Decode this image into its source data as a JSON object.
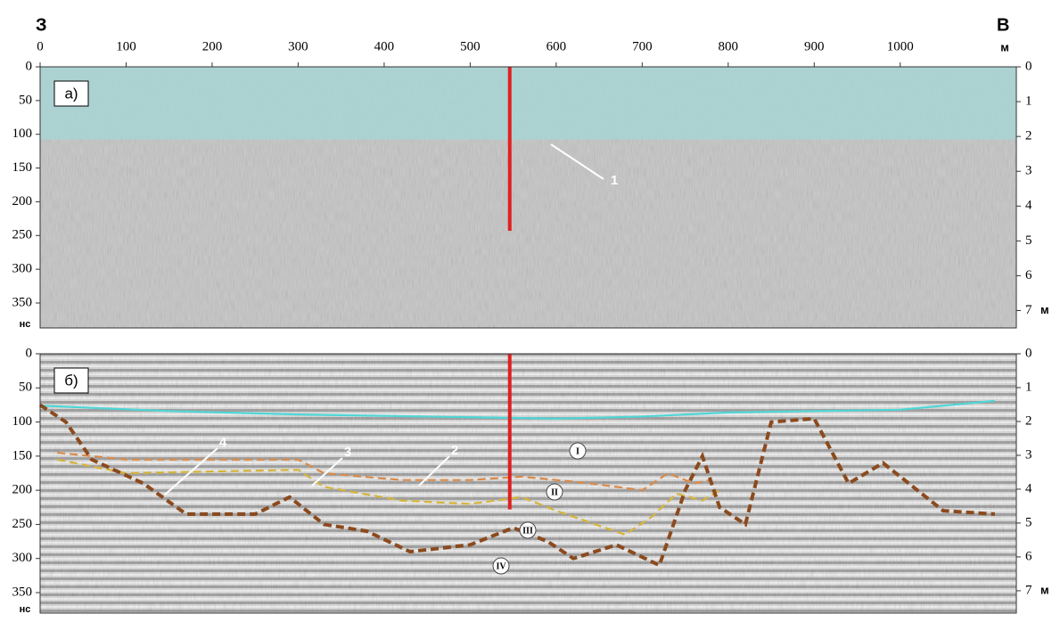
{
  "chart_data": [
    {
      "type": "radargram",
      "panel_label": "а)",
      "x_left_label": "З",
      "x_right_label": "В",
      "x_unit": "м",
      "xlim": [
        0,
        1135
      ],
      "xticks": [
        0,
        100,
        200,
        300,
        400,
        500,
        600,
        700,
        800,
        900,
        1000
      ],
      "ylim": [
        0,
        387
      ],
      "yticks": [
        0,
        50,
        100,
        150,
        200,
        250,
        300,
        350
      ],
      "y_unit": "нс",
      "y2lim": [
        0,
        7.5
      ],
      "y2ticks": [
        0,
        1,
        2,
        3,
        4,
        5,
        6,
        7
      ],
      "y2_unit": "м",
      "water_bottom": 108,
      "water_color": "#a9d3d3",
      "well_x": 546,
      "well_depth": 243,
      "well_color": "#e02020",
      "annotations": [
        "1"
      ],
      "series": []
    },
    {
      "type": "radargram",
      "panel_label": "б)",
      "xlim": [
        0,
        1135
      ],
      "ylim": [
        0,
        380
      ],
      "yticks": [
        0,
        50,
        100,
        150,
        200,
        250,
        300,
        350
      ],
      "y_unit": "нс",
      "y2lim": [
        0,
        7.66
      ],
      "y2ticks": [
        0,
        1,
        2,
        3,
        4,
        5,
        6,
        7
      ],
      "y2_unit": "м",
      "well_x": 546,
      "well_depth": 228,
      "well_color": "#e02020",
      "annotations": [
        "I",
        "II",
        "III",
        "IV"
      ],
      "series": [
        {
          "color": "#4fd6d6",
          "dashed": false,
          "x": [
            0,
            150,
            300,
            450,
            600,
            700,
            800,
            900,
            1000,
            1110
          ],
          "values": [
            76,
            84,
            89,
            92,
            95,
            92,
            86,
            84,
            82,
            69
          ]
        },
        {
          "name": "2",
          "color": "#d98a4a",
          "dashed": true,
          "x": [
            20,
            100,
            300,
            330,
            420,
            500,
            560,
            640,
            700,
            730,
            760,
            780
          ],
          "values": [
            145,
            155,
            155,
            175,
            185,
            185,
            180,
            190,
            200,
            175,
            190,
            185
          ]
        },
        {
          "name": "3",
          "color": "#d6b43a",
          "dashed": true,
          "x": [
            20,
            100,
            300,
            330,
            420,
            500,
            560,
            600,
            680,
            710,
            740,
            770,
            790
          ],
          "values": [
            155,
            175,
            170,
            195,
            215,
            220,
            210,
            230,
            265,
            240,
            205,
            215,
            200
          ]
        },
        {
          "name": "4",
          "color": "#8b4a1e",
          "dashed": true,
          "x": [
            0,
            30,
            60,
            120,
            170,
            250,
            290,
            330,
            380,
            430,
            500,
            550,
            590,
            620,
            670,
            720,
            750,
            770,
            790,
            820,
            850,
            900,
            940,
            980,
            1050,
            1110
          ],
          "values": [
            75,
            100,
            155,
            190,
            235,
            235,
            210,
            250,
            260,
            290,
            280,
            255,
            275,
            300,
            280,
            310,
            200,
            150,
            225,
            250,
            100,
            95,
            190,
            160,
            230,
            235
          ]
        }
      ]
    }
  ]
}
